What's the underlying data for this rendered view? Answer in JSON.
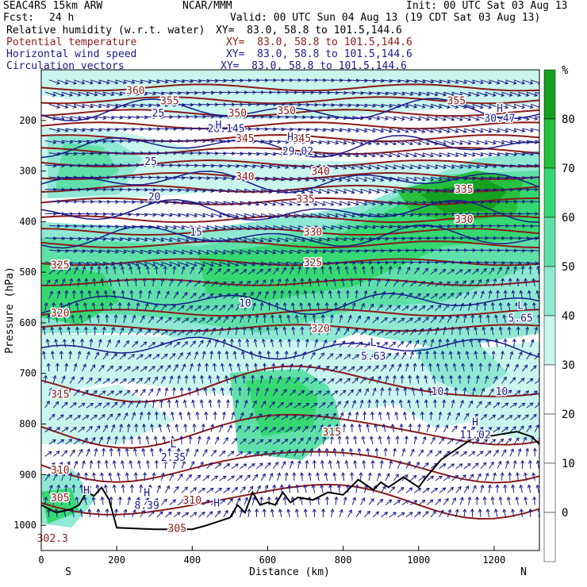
{
  "header": {
    "model": "SEAC4RS 15km ARW",
    "org": "NCAR/MMM",
    "init": "Init: 00 UTC Sat 03 Aug 13",
    "fcst_label": "Fcst:",
    "fcst_value": "24 h",
    "valid": "Valid: 00 UTC Sun 04 Aug 13 (19 CDT Sat 03 Aug 13)",
    "fields": [
      {
        "name": "Relative humidity (w.r.t. water)",
        "xy": "XY=  83.0, 58.8 to 101.5,144.6",
        "color": "#000000"
      },
      {
        "name": "Potential temperature",
        "xy": "XY=  83.0, 58.8 to 101.5,144.6",
        "color": "#8b1a1a"
      },
      {
        "name": "Horizontal wind speed",
        "xy": "XY=  83.0, 58.8 to 101.5,144.6",
        "color": "#1a1a8b"
      },
      {
        "name": "Circulation vectors",
        "xy": "XY=  83.0, 58.8 to 101.5,144.6",
        "color": "#1a1a8b"
      }
    ]
  },
  "chart_data": {
    "type": "heatmap",
    "xlabel": "Distance (km)",
    "ylabel": "Pressure (hPa)",
    "xlim": [
      0,
      1320
    ],
    "ylim": [
      1050,
      100
    ],
    "x_ticks": [
      0,
      200,
      400,
      600,
      800,
      1000,
      1200
    ],
    "y_ticks": [
      200,
      300,
      400,
      500,
      600,
      700,
      800,
      900,
      1000
    ],
    "left_end_label": "S",
    "right_end_label": "N",
    "colorbar": {
      "unit": "%",
      "ticks": [
        0,
        10,
        20,
        30,
        40,
        50,
        60,
        70,
        80
      ],
      "colors": [
        "#ffffff",
        "#ffffff",
        "#ffffff",
        "#ffffff",
        "#c8f5ec",
        "#8ee8d2",
        "#5fe0a8",
        "#36d872",
        "#26c03e",
        "#14a020"
      ]
    },
    "terrain_profile": [
      [
        0,
        960
      ],
      [
        40,
        975
      ],
      [
        80,
        968
      ],
      [
        100,
        960
      ],
      [
        120,
        935
      ],
      [
        140,
        942
      ],
      [
        160,
        925
      ],
      [
        180,
        950
      ],
      [
        200,
        1005
      ],
      [
        300,
        1008
      ],
      [
        400,
        1008
      ],
      [
        440,
        1000
      ],
      [
        480,
        990
      ],
      [
        500,
        985
      ],
      [
        520,
        960
      ],
      [
        540,
        975
      ],
      [
        560,
        935
      ],
      [
        580,
        960
      ],
      [
        600,
        955
      ],
      [
        620,
        960
      ],
      [
        640,
        935
      ],
      [
        660,
        955
      ],
      [
        680,
        945
      ],
      [
        720,
        950
      ],
      [
        760,
        935
      ],
      [
        800,
        940
      ],
      [
        840,
        910
      ],
      [
        880,
        930
      ],
      [
        900,
        915
      ],
      [
        920,
        925
      ],
      [
        960,
        905
      ],
      [
        1000,
        925
      ],
      [
        1020,
        905
      ],
      [
        1060,
        870
      ],
      [
        1100,
        850
      ],
      [
        1140,
        830
      ],
      [
        1180,
        825
      ],
      [
        1220,
        820
      ],
      [
        1260,
        815
      ],
      [
        1300,
        825
      ],
      [
        1320,
        840
      ]
    ],
    "theta_labels": [
      {
        "text": "360",
        "x": 250,
        "p": 140
      },
      {
        "text": "355",
        "x": 340,
        "p": 160
      },
      {
        "text": "355",
        "x": 1100,
        "p": 160
      },
      {
        "text": "350",
        "x": 520,
        "p": 185
      },
      {
        "text": "350",
        "x": 650,
        "p": 180
      },
      {
        "text": "345",
        "x": 540,
        "p": 235
      },
      {
        "text": "345",
        "x": 690,
        "p": 235
      },
      {
        "text": "340",
        "x": 540,
        "p": 310
      },
      {
        "text": "340",
        "x": 740,
        "p": 300
      },
      {
        "text": "335",
        "x": 700,
        "p": 355
      },
      {
        "text": "335",
        "x": 1120,
        "p": 335
      },
      {
        "text": "330",
        "x": 720,
        "p": 420
      },
      {
        "text": "330",
        "x": 1120,
        "p": 395
      },
      {
        "text": "325",
        "x": 50,
        "p": 485
      },
      {
        "text": "325",
        "x": 720,
        "p": 480
      },
      {
        "text": "320",
        "x": 50,
        "p": 580
      },
      {
        "text": "320",
        "x": 740,
        "p": 610
      },
      {
        "text": "315",
        "x": 50,
        "p": 740
      },
      {
        "text": "315",
        "x": 770,
        "p": 815
      },
      {
        "text": "310",
        "x": 50,
        "p": 890
      },
      {
        "text": "310",
        "x": 400,
        "p": 950
      },
      {
        "text": "305",
        "x": 50,
        "p": 945
      },
      {
        "text": "305",
        "x": 360,
        "p": 1005
      },
      {
        "text": "302.3",
        "x": 30,
        "p": 1025
      }
    ],
    "speed_labels": [
      {
        "text": "25",
        "x": 310,
        "p": 185
      },
      {
        "text": "25",
        "x": 290,
        "p": 280
      },
      {
        "text": "20",
        "x": 300,
        "p": 350
      },
      {
        "text": "15",
        "x": 410,
        "p": 420
      },
      {
        "text": "10",
        "x": 540,
        "p": 560
      },
      {
        "text": "10",
        "x": 1050,
        "p": 735
      },
      {
        "text": "10",
        "x": 1220,
        "p": 735
      },
      {
        "text": "28.145",
        "x": 490,
        "p": 215
      },
      {
        "text": "29.02",
        "x": 680,
        "p": 260
      },
      {
        "text": "30.47",
        "x": 1215,
        "p": 195
      },
      {
        "text": "2.35",
        "x": 350,
        "p": 865
      },
      {
        "text": "5.63",
        "x": 880,
        "p": 665
      },
      {
        "text": "5.65",
        "x": 1270,
        "p": 590
      },
      {
        "text": "8.39",
        "x": 280,
        "p": 960
      },
      {
        "text": "11.02",
        "x": 1150,
        "p": 820
      }
    ],
    "extrema": [
      {
        "text": "H",
        "x": 470,
        "p": 208
      },
      {
        "text": "H",
        "x": 660,
        "p": 232
      },
      {
        "text": "H",
        "x": 1215,
        "p": 175
      },
      {
        "text": "L",
        "x": 350,
        "p": 838
      },
      {
        "text": "L",
        "x": 880,
        "p": 638
      },
      {
        "text": "L",
        "x": 1270,
        "p": 565
      },
      {
        "text": "H",
        "x": 280,
        "p": 935
      },
      {
        "text": "H",
        "x": 120,
        "p": 930
      },
      {
        "text": "H",
        "x": 465,
        "p": 955
      },
      {
        "text": "H",
        "x": 1150,
        "p": 795
      }
    ]
  }
}
